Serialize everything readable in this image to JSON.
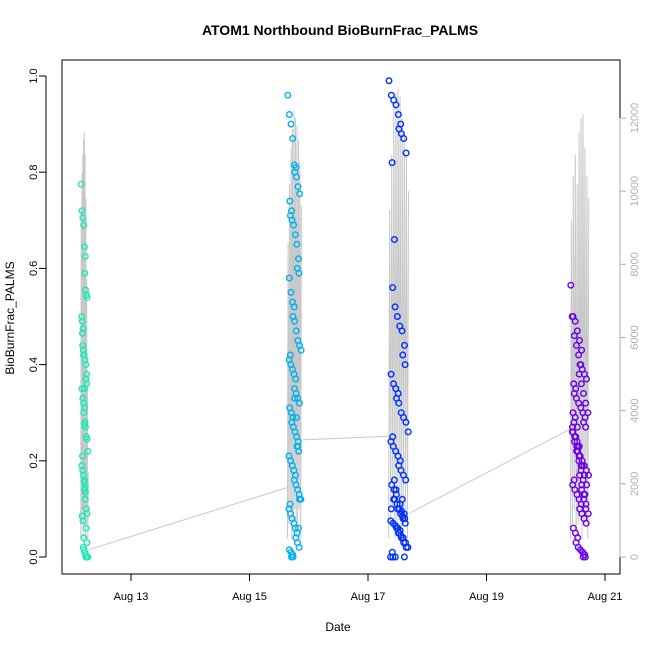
{
  "chart_data": {
    "type": "scatter",
    "title": "ATOM1 Northbound BioBurnFrac_PALMS",
    "xlabel": "Date",
    "ylabel": "BioBurnFrac_PALMS",
    "xlim": [
      "2016-08-12 00:00",
      "2016-08-21 03:00"
    ],
    "ylim": [
      0,
      1.0
    ],
    "y2lim": [
      0,
      12500
    ],
    "x_ticks": [
      {
        "date": "2016-08-13",
        "label": "Aug 13"
      },
      {
        "date": "2016-08-15",
        "label": "Aug 15"
      },
      {
        "date": "2016-08-17",
        "label": "Aug 17"
      },
      {
        "date": "2016-08-19",
        "label": "Aug 19"
      },
      {
        "date": "2016-08-21",
        "label": "Aug 21"
      }
    ],
    "y_ticks": [
      {
        "value": 0.0,
        "label": "0.0"
      },
      {
        "value": 0.2,
        "label": "0.2"
      },
      {
        "value": 0.4,
        "label": "0.4"
      },
      {
        "value": 0.6,
        "label": "0.6"
      },
      {
        "value": 0.8,
        "label": "0.8"
      },
      {
        "value": 1.0,
        "label": "1.0"
      }
    ],
    "y2_ticks": [
      {
        "value": 0,
        "label": "0"
      },
      {
        "value": 2000,
        "label": "2000"
      },
      {
        "value": 4000,
        "label": "4000"
      },
      {
        "value": 6000,
        "label": "6000"
      },
      {
        "value": 8000,
        "label": "8000"
      },
      {
        "value": 10000,
        "label": "10000"
      },
      {
        "value": 12000,
        "label": "12000"
      }
    ],
    "grid": false,
    "colors": {
      "flight1": "#1de9b6",
      "flight2": "#00b0f0",
      "flight3": "#0030ff",
      "flight4": "#6a00e8",
      "altitude_line": "#c8c8c8",
      "right_axis": "#b0b0b0"
    },
    "flights": [
      {
        "color_key": "flight1",
        "t_start": "2016-08-12 03:50",
        "t_end": "2016-08-12 06:40",
        "points": [
          [
            0.775,
            0.72,
            0.705,
            0.69,
            0.645,
            0.625,
            0.59,
            0.555,
            0.545,
            0.54
          ],
          [
            0.49,
            0.475,
            0.465,
            0.43,
            0.42,
            0.41,
            0.4,
            0.38,
            0.37,
            0.36
          ],
          [
            0.35,
            0.33,
            0.32,
            0.31,
            0.3,
            0.275,
            0.27,
            0.25,
            0.245,
            0.22
          ],
          [
            0.21,
            0.19,
            0.18,
            0.17,
            0.155,
            0.145,
            0.14,
            0.135,
            0.1,
            0.09
          ],
          [
            0.085,
            0.075,
            0.04,
            0.02,
            0.015,
            0.01,
            0.005,
            0.0,
            0.0,
            0.0
          ],
          [
            0.5,
            0.44,
            0.42,
            0.35,
            0.28,
            0.16,
            0.12,
            0.06,
            0.03,
            0.0
          ]
        ]
      },
      {
        "color_key": "flight2",
        "t_start": "2016-08-15 15:30",
        "t_end": "2016-08-15 21:10",
        "points": [
          [
            0.96,
            0.92,
            0.9,
            0.87,
            0.815,
            0.81,
            0.8,
            0.79,
            0.77,
            0.755
          ],
          [
            0.74,
            0.72,
            0.71,
            0.7,
            0.69,
            0.67,
            0.65,
            0.62,
            0.6,
            0.59
          ],
          [
            0.58,
            0.55,
            0.53,
            0.52,
            0.5,
            0.49,
            0.47,
            0.45,
            0.44,
            0.43
          ],
          [
            0.42,
            0.41,
            0.4,
            0.39,
            0.38,
            0.37,
            0.35,
            0.34,
            0.33,
            0.32
          ],
          [
            0.31,
            0.3,
            0.29,
            0.28,
            0.27,
            0.26,
            0.25,
            0.24,
            0.23,
            0.22
          ],
          [
            0.21,
            0.2,
            0.19,
            0.18,
            0.17,
            0.16,
            0.15,
            0.14,
            0.13,
            0.12
          ],
          [
            0.11,
            0.1,
            0.09,
            0.08,
            0.07,
            0.06,
            0.05,
            0.04,
            0.03,
            0.02
          ],
          [
            0.015,
            0.01,
            0.005,
            0.0,
            0.0,
            0.33,
            0.29,
            0.23,
            0.12,
            0.06
          ]
        ]
      },
      {
        "color_key": "flight3",
        "t_start": "2016-08-17 08:30",
        "t_end": "2016-08-17 16:40",
        "points": [
          [
            0.99,
            0.96,
            0.95,
            0.94,
            0.92,
            0.9,
            0.89,
            0.88,
            0.87,
            0.84
          ],
          [
            0.82,
            0.66,
            0.56,
            0.52,
            0.5,
            0.48,
            0.47,
            0.44,
            0.42,
            0.4
          ],
          [
            0.38,
            0.36,
            0.35,
            0.34,
            0.33,
            0.32,
            0.3,
            0.29,
            0.28,
            0.26
          ],
          [
            0.25,
            0.24,
            0.23,
            0.22,
            0.21,
            0.2,
            0.19,
            0.18,
            0.17,
            0.16
          ],
          [
            0.15,
            0.14,
            0.13,
            0.12,
            0.11,
            0.1,
            0.095,
            0.09,
            0.085,
            0.08
          ],
          [
            0.075,
            0.07,
            0.065,
            0.06,
            0.055,
            0.05,
            0.045,
            0.04,
            0.03,
            0.02
          ],
          [
            0.01,
            0.0,
            0.0,
            0.0,
            0.1,
            0.11,
            0.12,
            0.09,
            0.08,
            0.07
          ],
          [
            0.1,
            0.12,
            0.14,
            0.16,
            0.06,
            0.05,
            0.04,
            0.03,
            0.02,
            0.0
          ]
        ]
      },
      {
        "color_key": "flight4",
        "t_start": "2016-08-20 10:10",
        "t_end": "2016-08-20 17:40",
        "points": [
          [
            0.565,
            0.5,
            0.49,
            0.47,
            0.45,
            0.43,
            0.4,
            0.39,
            0.38,
            0.37
          ],
          [
            0.36,
            0.35,
            0.34,
            0.33,
            0.32,
            0.31,
            0.3,
            0.29,
            0.28,
            0.27
          ],
          [
            0.26,
            0.25,
            0.24,
            0.23,
            0.22,
            0.21,
            0.2,
            0.19,
            0.18,
            0.17
          ],
          [
            0.16,
            0.15,
            0.14,
            0.13,
            0.12,
            0.11,
            0.1,
            0.09,
            0.08,
            0.07
          ],
          [
            0.06,
            0.05,
            0.04,
            0.03,
            0.02,
            0.015,
            0.01,
            0.005,
            0.0,
            0.0
          ],
          [
            0.27,
            0.25,
            0.23,
            0.21,
            0.19,
            0.17,
            0.15,
            0.13,
            0.11,
            0.09
          ],
          [
            0.28,
            0.26,
            0.24,
            0.22,
            0.2,
            0.18,
            0.16,
            0.14,
            0.12,
            0.1
          ],
          [
            0.3,
            0.29,
            0.27,
            0.25,
            0.23,
            0.21,
            0.19,
            0.17,
            0.15,
            0.13
          ],
          [
            0.5,
            0.46,
            0.44,
            0.42,
            0.4,
            0.38,
            0.36,
            0.34,
            0.32,
            0.3
          ]
        ]
      }
    ],
    "altitude_series": {
      "name": "",
      "segments": [
        {
          "t_start": "2016-08-12 03:40",
          "t_end": "2016-08-12 06:50",
          "peak_y2": [
            9500,
            10500,
            11000,
            11400,
            11600,
            11000,
            9800,
            7600,
            5000,
            2300
          ]
        },
        {
          "t_start": "2016-08-15 15:20",
          "t_end": "2016-08-15 21:20",
          "peak_y2": [
            8600,
            10200,
            11200,
            11700,
            12200,
            12000,
            11800,
            11400,
            10800,
            9600
          ]
        },
        {
          "t_start": "2016-08-17 08:20",
          "t_end": "2016-08-17 16:50",
          "peak_y2": [
            9500,
            11000,
            12400,
            12700,
            12800,
            12600,
            12000,
            11600,
            11000,
            10000
          ]
        },
        {
          "t_start": "2016-08-20 10:00",
          "t_end": "2016-08-20 17:50",
          "peak_y2": [
            9200,
            10400,
            11000,
            10200,
            11600,
            12000,
            12100,
            11200,
            10400,
            9800
          ]
        }
      ],
      "connectors": [
        {
          "from": [
            "2016-08-12 06:50",
            200
          ],
          "to": [
            "2016-08-15 15:20",
            1900
          ]
        },
        {
          "from": [
            "2016-08-15 21:20",
            3200
          ],
          "to": [
            "2016-08-17 08:20",
            3300
          ]
        },
        {
          "from": [
            "2016-08-17 16:50",
            1200
          ],
          "to": [
            "2016-08-20 10:00",
            3500
          ]
        }
      ]
    }
  }
}
